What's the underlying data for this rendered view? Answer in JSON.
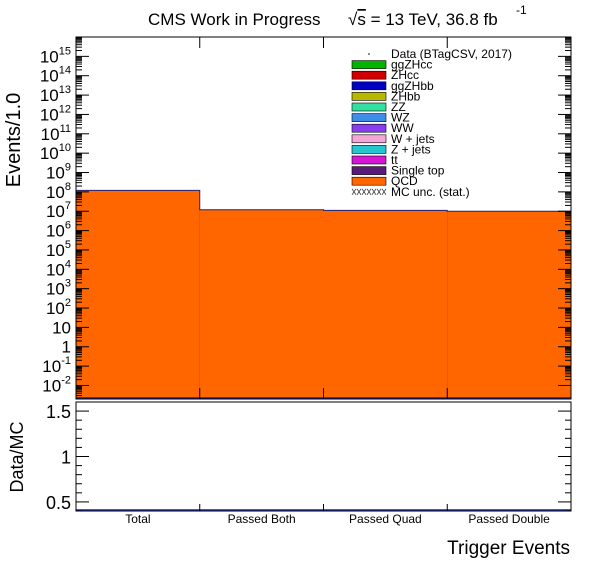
{
  "header": {
    "label": "CMS Work in Progress",
    "energy_prefix": "s",
    "energy_text": " = 13 TeV, 36.8 fb",
    "energy_sup": "-1"
  },
  "chart_data": {
    "type": "bar",
    "stacked": true,
    "log_y": true,
    "title": "",
    "xlabel": "Trigger Events",
    "ylabel": "Events/1.0",
    "categories": [
      "Total",
      "Passed Both",
      "Passed Quad",
      "Passed Double"
    ],
    "ylim": [
      0.002,
      1e+16
    ],
    "y_tick_exponents": [
      -2,
      -1,
      0,
      1,
      2,
      3,
      4,
      5,
      6,
      7,
      8,
      9,
      10,
      11,
      12,
      13,
      14,
      15
    ],
    "series": [
      {
        "name": "ggZHcc",
        "color": "#00b400",
        "values": [
          0,
          0,
          0,
          0
        ]
      },
      {
        "name": "ZHcc",
        "color": "#d00000",
        "values": [
          0,
          0,
          0,
          0
        ]
      },
      {
        "name": "ggZHbb",
        "color": "#0000c0",
        "values": [
          0,
          0,
          0,
          0
        ]
      },
      {
        "name": "ZHbb",
        "color": "#b8b800",
        "values": [
          0,
          0,
          0,
          0
        ]
      },
      {
        "name": "ZZ",
        "color": "#33e0a0",
        "values": [
          0,
          0,
          0,
          0
        ]
      },
      {
        "name": "WZ",
        "color": "#3e8ee8",
        "values": [
          0,
          0,
          0,
          0
        ]
      },
      {
        "name": "WW",
        "color": "#8a3cf0",
        "values": [
          0,
          0,
          0,
          0
        ]
      },
      {
        "name": "W + jets",
        "color": "#f4a6d8",
        "values": [
          0,
          0,
          0,
          0
        ]
      },
      {
        "name": "Z + jets",
        "color": "#26c6d0",
        "values": [
          0,
          0,
          0,
          0
        ]
      },
      {
        "name": "tt",
        "color": "#d616d6",
        "values": [
          0,
          0,
          0,
          0
        ]
      },
      {
        "name": "Single top",
        "color": "#5a1a7a",
        "values": [
          0,
          0,
          0,
          0
        ]
      },
      {
        "name": "QCD",
        "color": "#ff6600",
        "values": [
          120000000,
          12000000,
          11000000,
          10000000
        ]
      }
    ],
    "data_series": {
      "name": "Data (BTagCSV, 2017)",
      "values": []
    },
    "uncertainty_label": "MC unc. (stat.)",
    "legend_position": "top-right",
    "ratio": {
      "ylabel": "Data/MC",
      "ylim": [
        0.4,
        1.6
      ],
      "y_ticks": [
        0.5,
        1,
        1.5
      ],
      "values": []
    }
  }
}
